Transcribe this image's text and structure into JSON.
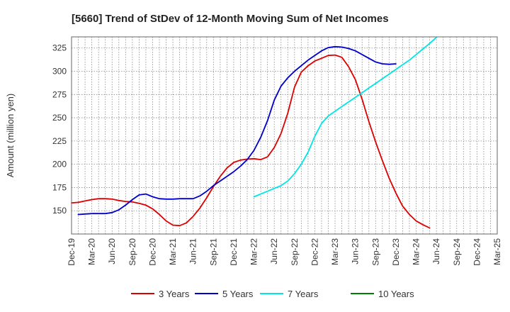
{
  "chart_data": {
    "type": "line",
    "title": "[5660]  Trend of StDev of 12-Month Moving Sum of Net Incomes",
    "ylabel": "Amount (million yen)",
    "xlabel": "",
    "ylim": [
      125,
      337
    ],
    "yticks": [
      150,
      175,
      200,
      225,
      250,
      275,
      300,
      325
    ],
    "xticks": [
      "Dec-19",
      "Mar-20",
      "Jun-20",
      "Sep-20",
      "Dec-20",
      "Mar-21",
      "Jun-21",
      "Sep-21",
      "Dec-21",
      "Mar-22",
      "Jun-22",
      "Sep-22",
      "Dec-22",
      "Mar-23",
      "Jun-23",
      "Sep-23",
      "Dec-23",
      "Mar-24",
      "Jun-24",
      "Sep-24",
      "Dec-24",
      "Mar-25"
    ],
    "grid": true,
    "legend_position": "bottom",
    "colors": {
      "3 Years": "#dd0000",
      "5 Years": "#0000cc",
      "7 Years": "#00e5e5",
      "10 Years": "#008000"
    },
    "series": [
      {
        "name": "3 Years",
        "start_index": 0,
        "values": [
          158.5,
          159,
          160.5,
          162,
          163,
          163,
          162.5,
          161,
          160,
          159.5,
          158,
          156,
          152,
          146,
          139,
          134.5,
          134,
          137,
          144,
          153,
          164,
          176,
          187,
          196,
          202,
          204.5,
          205.5,
          206,
          205,
          208,
          218,
          233,
          255,
          283,
          299,
          306,
          311,
          314,
          317,
          317.5,
          315,
          305,
          291,
          270,
          246,
          224,
          204,
          185,
          169,
          155,
          146,
          139,
          135,
          131.5
        ]
      },
      {
        "name": "5 Years",
        "start_index": 1,
        "values": [
          146,
          146.5,
          147,
          147,
          147,
          148,
          151,
          156,
          162,
          167,
          168,
          165,
          163,
          162.5,
          162.5,
          163,
          163,
          163,
          166,
          171,
          177,
          182,
          187,
          192,
          198,
          205,
          215,
          229,
          247,
          269,
          284,
          293,
          300,
          306,
          312,
          317,
          322,
          325.5,
          326.5,
          326,
          324.5,
          322,
          318,
          314,
          310,
          308,
          307.5,
          308
        ]
      },
      {
        "name": "7 Years",
        "start_index": 27,
        "values": [
          165,
          168,
          171,
          174,
          177,
          182,
          190,
          200,
          213,
          230,
          244,
          252,
          257,
          262,
          267,
          272,
          277,
          282,
          287,
          292,
          297,
          302,
          307,
          312,
          318,
          324,
          330,
          336.5
        ]
      },
      {
        "name": "10 Years",
        "start_index": 0,
        "values": []
      }
    ]
  }
}
